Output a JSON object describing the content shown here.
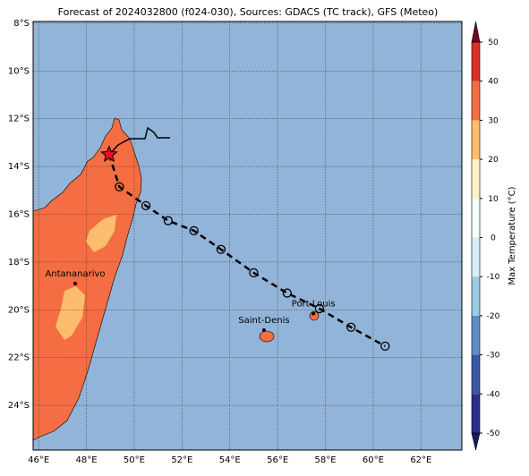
{
  "map": {
    "title": "Forecast of 2024032800 (f024-030), Sources: GDACS (TC track), GFS (Meteo)",
    "lonlim": [
      45.77,
      63.71
    ],
    "latlim": [
      -25.87,
      -7.93
    ],
    "lonticks": [
      {
        "value": 46,
        "label": "46°E"
      },
      {
        "value": 48,
        "label": "48°E"
      },
      {
        "value": 50,
        "label": "50°E"
      },
      {
        "value": 52,
        "label": "52°E"
      },
      {
        "value": 54,
        "label": "54°E"
      },
      {
        "value": 56,
        "label": "56°E"
      },
      {
        "value": 58,
        "label": "58°E"
      },
      {
        "value": 60,
        "label": "60°E"
      },
      {
        "value": 62,
        "label": "62°E"
      }
    ],
    "latticks": [
      {
        "value": -8,
        "label": "8°S"
      },
      {
        "value": -10,
        "label": "10°S"
      },
      {
        "value": -12,
        "label": "12°S"
      },
      {
        "value": -14,
        "label": "14°S"
      },
      {
        "value": -16,
        "label": "16°S"
      },
      {
        "value": -18,
        "label": "18°S"
      },
      {
        "value": -20,
        "label": "20°S"
      },
      {
        "value": -22,
        "label": "22°S"
      },
      {
        "value": -24,
        "label": "24°S"
      }
    ],
    "ocean_color": "#92b4d8",
    "land_color": "#f46d43",
    "highland_color": "#fdbd6f",
    "current_position": {
      "lon": 48.95,
      "lat": -13.5
    },
    "track": [
      {
        "lon": 49.38,
        "lat": -14.85
      },
      {
        "lon": 50.49,
        "lat": -15.64
      },
      {
        "lon": 51.42,
        "lat": -16.27
      },
      {
        "lon": 52.5,
        "lat": -16.69
      },
      {
        "lon": 53.63,
        "lat": -17.47
      },
      {
        "lon": 55.0,
        "lat": -18.45
      },
      {
        "lon": 56.4,
        "lat": -19.3
      },
      {
        "lon": 57.75,
        "lat": -19.95
      },
      {
        "lon": 59.07,
        "lat": -20.73
      },
      {
        "lon": 60.5,
        "lat": -21.52
      }
    ],
    "cities": [
      {
        "name": "Antananarivo",
        "lon": 47.53,
        "lat": -18.9
      },
      {
        "name": "Saint-Denis",
        "lon": 55.43,
        "lat": -20.85
      },
      {
        "name": "Port Louis",
        "lon": 57.5,
        "lat": -20.16
      }
    ],
    "colorbar": {
      "label": "Max Temperature (°C)",
      "lim": [
        -50,
        50
      ],
      "ticks": [
        -50,
        -40,
        -30,
        -20,
        -10,
        0,
        10,
        20,
        30,
        40,
        50
      ],
      "colors": [
        "#2b2e8a",
        "#3c58a5",
        "#5d8ec3",
        "#9ccbe3",
        "#d5eef5",
        "#f7fcfd",
        "#fef3c8",
        "#fdbd6f",
        "#f46d43",
        "#d73027",
        "#a50026"
      ],
      "under_color": "#1a1a5e",
      "over_color": "#7a0020"
    }
  }
}
